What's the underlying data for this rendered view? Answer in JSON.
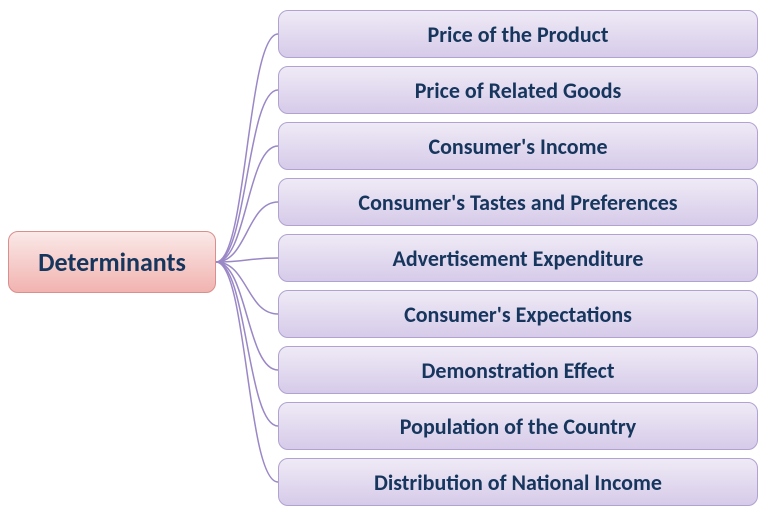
{
  "diagram": {
    "type": "tree",
    "background_color": "#ffffff",
    "connector_color": "#9a87c6",
    "connector_width": 1.5,
    "root": {
      "label": "Determinants",
      "fontsize": 26,
      "text_color": "#17365d",
      "fill_gradient_top": "#fae9e8",
      "fill_gradient_bottom": "#f1b3b0",
      "border_color": "#d98f8d",
      "border_radius": 10
    },
    "child_style": {
      "fontsize": 22,
      "text_color": "#17365d",
      "fill_gradient_top": "#efeaf6",
      "fill_gradient_bottom": "#d6cbe9",
      "border_color": "#b1a2d1",
      "border_radius": 10,
      "height": 48,
      "gap": 8
    },
    "children": [
      {
        "label": "Price of the Product"
      },
      {
        "label": "Price of Related Goods"
      },
      {
        "label": "Consumer's Income"
      },
      {
        "label": "Consumer's Tastes and Preferences"
      },
      {
        "label": "Advertisement Expenditure"
      },
      {
        "label": "Consumer's Expectations"
      },
      {
        "label": "Demonstration Effect"
      },
      {
        "label": "Population of the Country"
      },
      {
        "label": "Distribution of National Income"
      }
    ]
  }
}
